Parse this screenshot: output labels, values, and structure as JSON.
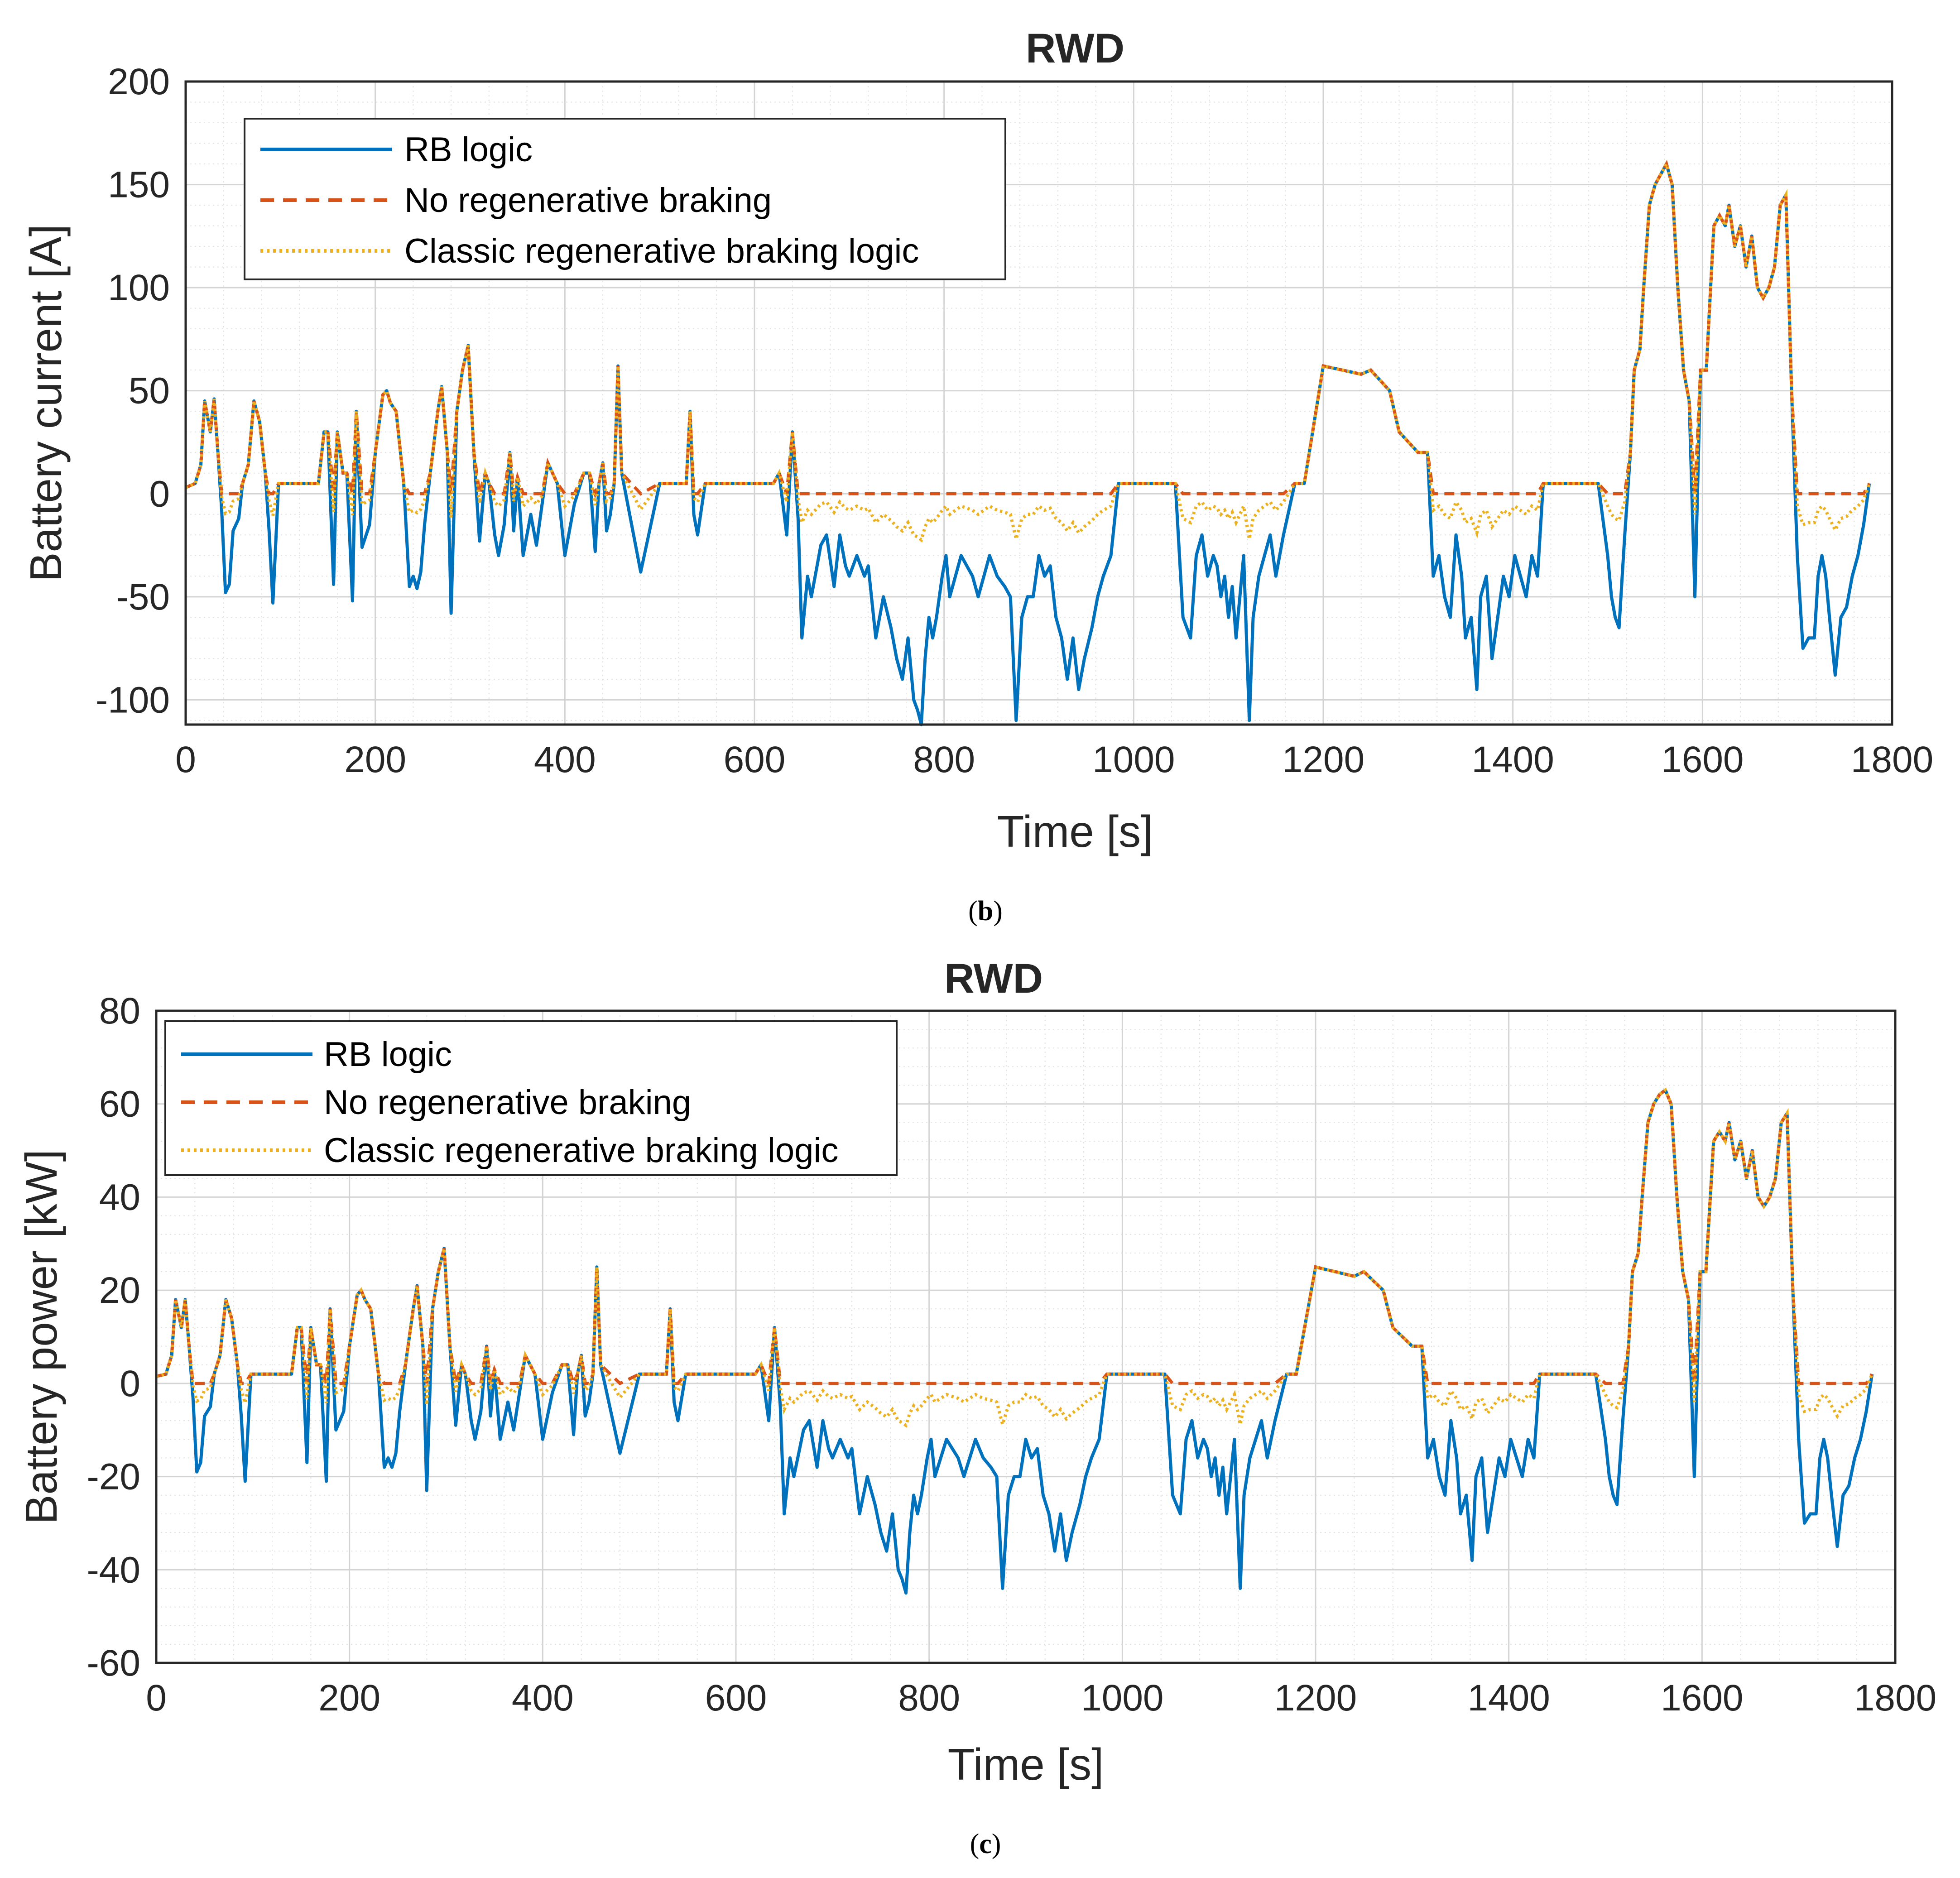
{
  "captions": [
    "b",
    "c"
  ],
  "colors": {
    "rb_logic": "#0072BD",
    "no_regen": "#D95319",
    "classic": "#EDB120",
    "grid_major": "#d4d4d4",
    "grid_minor": "#e2e2e2"
  },
  "chart_data": [
    {
      "type": "line",
      "title": "RWD",
      "xlabel": "Time [s]",
      "ylabel": "Battery current [A]",
      "xlim": [
        0,
        1800
      ],
      "ylim": [
        -112,
        200
      ],
      "xticks": [
        0,
        200,
        400,
        600,
        800,
        1000,
        1200,
        1400,
        1600,
        1800
      ],
      "yticks": [
        -100,
        -50,
        0,
        50,
        100,
        150,
        200
      ],
      "ytick_labels": [
        "-100",
        "-50",
        "0",
        "50",
        "100",
        "150",
        "200"
      ],
      "grid": "on",
      "legend_position": "top-left",
      "series": [
        {
          "name": "RB logic",
          "style": "solid"
        },
        {
          "name": "No regenerative braking",
          "style": "dashed"
        },
        {
          "name": "Classic regenerative braking logic",
          "style": "dotted"
        }
      ],
      "x": [
        0,
        10,
        16,
        20,
        26,
        30,
        34,
        38,
        42,
        46,
        50,
        56,
        60,
        66,
        72,
        78,
        84,
        88,
        92,
        98,
        110,
        120,
        140,
        146,
        150,
        156,
        160,
        166,
        170,
        176,
        180,
        186,
        194,
        200,
        208,
        212,
        216,
        222,
        230,
        236,
        240,
        244,
        248,
        252,
        258,
        262,
        266,
        270,
        276,
        280,
        286,
        292,
        298,
        304,
        310,
        316,
        320,
        326,
        330,
        336,
        342,
        346,
        350,
        356,
        364,
        370,
        376,
        382,
        392,
        400,
        410,
        420,
        426,
        432,
        436,
        440,
        444,
        448,
        452,
        456,
        460,
        480,
        500,
        520,
        524,
        528,
        532,
        536,
        540,
        548,
        556,
        560,
        600,
        606,
        610,
        616,
        620,
        626,
        634,
        640,
        646,
        650,
        656,
        660,
        666,
        670,
        676,
        684,
        690,
        696,
        700,
        708,
        716,
        720,
        728,
        736,
        744,
        750,
        756,
        762,
        768,
        772,
        776,
        780,
        784,
        788,
        792,
        798,
        802,
        806,
        812,
        818,
        824,
        830,
        836,
        842,
        848,
        856,
        864,
        870,
        876,
        882,
        888,
        894,
        900,
        906,
        912,
        918,
        924,
        930,
        936,
        942,
        948,
        956,
        962,
        968,
        976,
        984,
        990,
        1000,
        1010,
        1020,
        1030,
        1036,
        1044,
        1052,
        1060,
        1066,
        1072,
        1078,
        1084,
        1088,
        1092,
        1096,
        1100,
        1104,
        1108,
        1112,
        1116,
        1122,
        1126,
        1132,
        1138,
        1144,
        1150,
        1158,
        1170,
        1180,
        1200,
        1220,
        1240,
        1250,
        1260,
        1270,
        1280,
        1290,
        1300,
        1310,
        1316,
        1322,
        1328,
        1334,
        1340,
        1346,
        1350,
        1356,
        1362,
        1366,
        1372,
        1378,
        1384,
        1390,
        1396,
        1402,
        1408,
        1414,
        1420,
        1426,
        1432,
        1440,
        1450,
        1470,
        1480,
        1490,
        1500,
        1504,
        1508,
        1512,
        1518,
        1524,
        1528,
        1534,
        1538,
        1544,
        1550,
        1556,
        1562,
        1568,
        1574,
        1580,
        1586,
        1592,
        1598,
        1604,
        1612,
        1618,
        1624,
        1628,
        1634,
        1640,
        1646,
        1652,
        1658,
        1664,
        1670,
        1676,
        1682,
        1688,
        1694,
        1700,
        1706,
        1712,
        1718,
        1722,
        1726,
        1730,
        1734,
        1740,
        1746,
        1752,
        1758,
        1764,
        1770,
        1776,
        1782,
        1788,
        1794,
        1800
      ],
      "series_values": {
        "rb_logic": [
          3,
          5,
          14,
          45,
          30,
          46,
          20,
          -8,
          -48,
          -44,
          -18,
          -12,
          5,
          14,
          45,
          35,
          10,
          -18,
          -53,
          5,
          5,
          5,
          5,
          30,
          30,
          -44,
          30,
          10,
          10,
          -52,
          40,
          -26,
          -15,
          20,
          48,
          50,
          44,
          40,
          5,
          -45,
          -40,
          -46,
          -38,
          -15,
          10,
          25,
          40,
          52,
          20,
          -58,
          40,
          60,
          72,
          20,
          -23,
          10,
          5,
          -20,
          -30,
          -15,
          20,
          -18,
          8,
          -30,
          -10,
          -25,
          -5,
          15,
          5,
          -30,
          -5,
          10,
          10,
          -28,
          5,
          15,
          -18,
          -10,
          5,
          62,
          10,
          -38,
          5,
          5,
          5,
          5,
          40,
          -10,
          -20,
          5,
          5,
          5,
          5,
          5,
          5,
          5,
          5,
          10,
          -20,
          30,
          -12,
          -70,
          -40,
          -50,
          -35,
          -25,
          -20,
          -45,
          -20,
          -35,
          -40,
          -30,
          -40,
          -35,
          -70,
          -50,
          -65,
          -80,
          -90,
          -70,
          -100,
          -105,
          -112,
          -80,
          -60,
          -70,
          -60,
          -40,
          -30,
          -50,
          -40,
          -30,
          -35,
          -40,
          -50,
          -40,
          -30,
          -40,
          -45,
          -50,
          -110,
          -60,
          -50,
          -50,
          -30,
          -40,
          -35,
          -60,
          -70,
          -90,
          -70,
          -95,
          -80,
          -65,
          -50,
          -40,
          -30,
          5,
          5,
          5,
          5,
          5,
          5,
          5,
          5,
          -60,
          -70,
          -30,
          -20,
          -40,
          -30,
          -35,
          -50,
          -40,
          -60,
          -45,
          -70,
          -50,
          -30,
          -110,
          -60,
          -40,
          -30,
          -20,
          -40,
          -20,
          5,
          5,
          62,
          60,
          58,
          60,
          55,
          50,
          30,
          25,
          20,
          20,
          -40,
          -30,
          -50,
          -60,
          -20,
          -40,
          -70,
          -60,
          -95,
          -50,
          -40,
          -80,
          -60,
          -40,
          -50,
          -30,
          -40,
          -50,
          -30,
          -40,
          5,
          5,
          5,
          5,
          5,
          5,
          -30,
          -50,
          -60,
          -65,
          -20,
          20,
          60,
          70,
          100,
          140,
          150,
          155,
          160,
          150,
          100,
          60,
          45,
          -50,
          60,
          60,
          130,
          135,
          130,
          140,
          120,
          130,
          110,
          125,
          100,
          95,
          100,
          110,
          140,
          145,
          50,
          -30,
          -75,
          -70,
          -70,
          -40,
          -30,
          -40,
          -60,
          -88,
          -60,
          -55,
          -40,
          -30,
          -15,
          5
        ]
      }
    },
    {
      "type": "line",
      "title": "RWD",
      "xlabel": "Time [s]",
      "ylabel": "Battery power [kW]",
      "xlim": [
        0,
        1800
      ],
      "ylim": [
        -60,
        80
      ],
      "xticks": [
        0,
        200,
        400,
        600,
        800,
        1000,
        1200,
        1400,
        1600,
        1800
      ],
      "yticks": [
        -60,
        -40,
        -20,
        0,
        20,
        40,
        60,
        80
      ],
      "ytick_labels": [
        "-60",
        "-40",
        "-20",
        "0",
        "20",
        "40",
        "60",
        "80"
      ],
      "grid": "on",
      "legend_position": "top-left",
      "series": [
        {
          "name": "RB logic",
          "style": "solid"
        },
        {
          "name": "No regenerative braking",
          "style": "dashed"
        },
        {
          "name": "Classic regenerative braking logic",
          "style": "dotted"
        }
      ],
      "x": [
        0,
        10,
        16,
        20,
        26,
        30,
        34,
        38,
        42,
        46,
        50,
        56,
        60,
        66,
        72,
        78,
        84,
        88,
        92,
        98,
        110,
        120,
        140,
        146,
        150,
        156,
        160,
        166,
        170,
        176,
        180,
        186,
        194,
        200,
        208,
        212,
        216,
        222,
        230,
        236,
        240,
        244,
        248,
        252,
        258,
        262,
        266,
        270,
        276,
        280,
        286,
        292,
        298,
        304,
        310,
        316,
        320,
        326,
        330,
        336,
        342,
        346,
        350,
        356,
        364,
        370,
        376,
        382,
        392,
        400,
        410,
        420,
        426,
        432,
        436,
        440,
        444,
        448,
        452,
        456,
        460,
        480,
        500,
        520,
        524,
        528,
        532,
        536,
        540,
        548,
        556,
        560,
        600,
        606,
        610,
        616,
        620,
        626,
        634,
        640,
        646,
        650,
        656,
        660,
        666,
        670,
        676,
        684,
        690,
        696,
        700,
        708,
        716,
        720,
        728,
        736,
        744,
        750,
        756,
        762,
        768,
        772,
        776,
        780,
        784,
        788,
        792,
        798,
        802,
        806,
        812,
        818,
        824,
        830,
        836,
        842,
        848,
        856,
        864,
        870,
        876,
        882,
        888,
        894,
        900,
        906,
        912,
        918,
        924,
        930,
        936,
        942,
        948,
        956,
        962,
        968,
        976,
        984,
        990,
        1000,
        1010,
        1020,
        1030,
        1036,
        1044,
        1052,
        1060,
        1066,
        1072,
        1078,
        1084,
        1088,
        1092,
        1096,
        1100,
        1104,
        1108,
        1112,
        1116,
        1122,
        1126,
        1132,
        1138,
        1144,
        1150,
        1158,
        1170,
        1180,
        1200,
        1220,
        1240,
        1250,
        1260,
        1270,
        1280,
        1290,
        1300,
        1310,
        1316,
        1322,
        1328,
        1334,
        1340,
        1346,
        1350,
        1356,
        1362,
        1366,
        1372,
        1378,
        1384,
        1390,
        1396,
        1402,
        1408,
        1414,
        1420,
        1426,
        1432,
        1440,
        1450,
        1470,
        1480,
        1490,
        1500,
        1504,
        1508,
        1512,
        1518,
        1524,
        1528,
        1534,
        1538,
        1544,
        1550,
        1556,
        1562,
        1568,
        1574,
        1580,
        1586,
        1592,
        1598,
        1604,
        1612,
        1618,
        1624,
        1628,
        1634,
        1640,
        1646,
        1652,
        1658,
        1664,
        1670,
        1676,
        1682,
        1688,
        1694,
        1700,
        1706,
        1712,
        1718,
        1722,
        1726,
        1730,
        1734,
        1740,
        1746,
        1752,
        1758,
        1764,
        1770,
        1776,
        1782,
        1788,
        1794,
        1800
      ],
      "series_values": {
        "rb_logic": [
          1.5,
          2,
          6,
          18,
          12,
          18,
          8,
          -3,
          -19,
          -17,
          -7,
          -5,
          2,
          6,
          18,
          14,
          4,
          -7,
          -21,
          2,
          2,
          2,
          2,
          12,
          12,
          -17,
          12,
          4,
          4,
          -21,
          16,
          -10,
          -6,
          8,
          19,
          20,
          18,
          16,
          2,
          -18,
          -16,
          -18,
          -15,
          -6,
          4,
          10,
          16,
          21,
          8,
          -23,
          16,
          24,
          29,
          8,
          -9,
          4,
          2,
          -8,
          -12,
          -6,
          8,
          -7,
          3,
          -12,
          -4,
          -10,
          -2,
          6,
          2,
          -12,
          -2,
          4,
          4,
          -11,
          2,
          6,
          -7,
          -4,
          2,
          25,
          4,
          -15,
          2,
          2,
          2,
          2,
          16,
          -4,
          -8,
          2,
          2,
          2,
          2,
          2,
          2,
          2,
          2,
          4,
          -8,
          12,
          -5,
          -28,
          -16,
          -20,
          -14,
          -10,
          -8,
          -18,
          -8,
          -14,
          -16,
          -12,
          -16,
          -14,
          -28,
          -20,
          -26,
          -32,
          -36,
          -28,
          -40,
          -42,
          -45,
          -32,
          -24,
          -28,
          -24,
          -16,
          -12,
          -20,
          -16,
          -12,
          -14,
          -16,
          -20,
          -16,
          -12,
          -16,
          -18,
          -20,
          -44,
          -24,
          -20,
          -20,
          -12,
          -16,
          -14,
          -24,
          -28,
          -36,
          -28,
          -38,
          -32,
          -26,
          -20,
          -16,
          -12,
          2,
          2,
          2,
          2,
          2,
          2,
          2,
          2,
          -24,
          -28,
          -12,
          -8,
          -16,
          -12,
          -14,
          -20,
          -16,
          -24,
          -18,
          -28,
          -20,
          -12,
          -44,
          -24,
          -16,
          -12,
          -8,
          -16,
          -8,
          2,
          2,
          25,
          24,
          23,
          24,
          22,
          20,
          12,
          10,
          8,
          8,
          -16,
          -12,
          -20,
          -24,
          -8,
          -16,
          -28,
          -24,
          -38,
          -20,
          -16,
          -32,
          -24,
          -16,
          -20,
          -12,
          -16,
          -20,
          -12,
          -16,
          2,
          2,
          2,
          2,
          2,
          2,
          -12,
          -20,
          -24,
          -26,
          -8,
          8,
          24,
          28,
          40,
          56,
          60,
          62,
          63,
          60,
          40,
          24,
          18,
          -20,
          24,
          24,
          52,
          54,
          52,
          56,
          48,
          52,
          44,
          50,
          40,
          38,
          40,
          44,
          56,
          58,
          20,
          -12,
          -30,
          -28,
          -28,
          -16,
          -12,
          -16,
          -24,
          -35,
          -24,
          -22,
          -16,
          -12,
          -6,
          2
        ]
      }
    }
  ]
}
